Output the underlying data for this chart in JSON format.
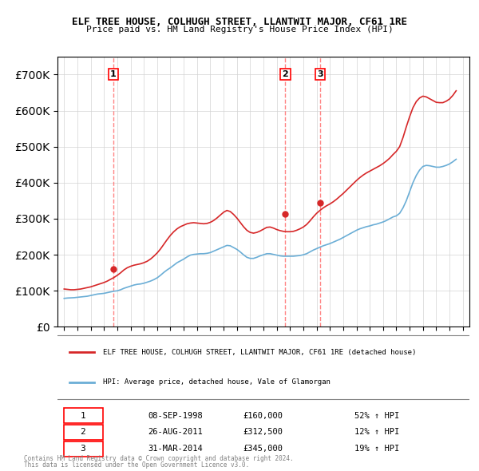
{
  "title": "ELF TREE HOUSE, COLHUGH STREET, LLANTWIT MAJOR, CF61 1RE",
  "subtitle": "Price paid vs. HM Land Registry's House Price Index (HPI)",
  "legend_line1": "ELF TREE HOUSE, COLHUGH STREET, LLANTWIT MAJOR, CF61 1RE (detached house)",
  "legend_line2": "HPI: Average price, detached house, Vale of Glamorgan",
  "footer1": "Contains HM Land Registry data © Crown copyright and database right 2024.",
  "footer2": "This data is licensed under the Open Government Licence v3.0.",
  "transactions": [
    {
      "num": 1,
      "date": "08-SEP-1998",
      "price": 160000,
      "pct": "52%",
      "x": 1998.69
    },
    {
      "num": 2,
      "date": "26-AUG-2011",
      "price": 312500,
      "pct": "12%",
      "x": 2011.65
    },
    {
      "num": 3,
      "date": "31-MAR-2014",
      "price": 345000,
      "pct": "19%",
      "x": 2014.25
    }
  ],
  "hpi_color": "#6baed6",
  "price_color": "#d62728",
  "vline_color": "#ff6666",
  "ylim": [
    0,
    750000
  ],
  "yticks": [
    0,
    100000,
    200000,
    300000,
    400000,
    500000,
    600000,
    700000
  ],
  "xlim_start": 1994.5,
  "xlim_end": 2025.5,
  "hpi_data": {
    "x": [
      1995,
      1995.25,
      1995.5,
      1995.75,
      1996,
      1996.25,
      1996.5,
      1996.75,
      1997,
      1997.25,
      1997.5,
      1997.75,
      1998,
      1998.25,
      1998.5,
      1998.75,
      1999,
      1999.25,
      1999.5,
      1999.75,
      2000,
      2000.25,
      2000.5,
      2000.75,
      2001,
      2001.25,
      2001.5,
      2001.75,
      2002,
      2002.25,
      2002.5,
      2002.75,
      2003,
      2003.25,
      2003.5,
      2003.75,
      2004,
      2004.25,
      2004.5,
      2004.75,
      2005,
      2005.25,
      2005.5,
      2005.75,
      2006,
      2006.25,
      2006.5,
      2006.75,
      2007,
      2007.25,
      2007.5,
      2007.75,
      2008,
      2008.25,
      2008.5,
      2008.75,
      2009,
      2009.25,
      2009.5,
      2009.75,
      2010,
      2010.25,
      2010.5,
      2010.75,
      2011,
      2011.25,
      2011.5,
      2011.75,
      2012,
      2012.25,
      2012.5,
      2012.75,
      2013,
      2013.25,
      2013.5,
      2013.75,
      2014,
      2014.25,
      2014.5,
      2014.75,
      2015,
      2015.25,
      2015.5,
      2015.75,
      2016,
      2016.25,
      2016.5,
      2016.75,
      2017,
      2017.25,
      2017.5,
      2017.75,
      2018,
      2018.25,
      2018.5,
      2018.75,
      2019,
      2019.25,
      2019.5,
      2019.75,
      2020,
      2020.25,
      2020.5,
      2020.75,
      2021,
      2021.25,
      2021.5,
      2021.75,
      2022,
      2022.25,
      2022.5,
      2022.75,
      2023,
      2023.25,
      2023.5,
      2023.75,
      2024,
      2024.25,
      2024.5
    ],
    "y": [
      79000,
      80000,
      80500,
      81000,
      82000,
      83000,
      84000,
      85000,
      87000,
      89000,
      91000,
      92000,
      93000,
      95000,
      97000,
      99000,
      100000,
      103000,
      107000,
      110000,
      113000,
      116000,
      118000,
      119000,
      121000,
      124000,
      127000,
      131000,
      136000,
      143000,
      151000,
      158000,
      164000,
      171000,
      178000,
      183000,
      188000,
      194000,
      199000,
      201000,
      202000,
      203000,
      203000,
      204000,
      206000,
      210000,
      214000,
      218000,
      222000,
      226000,
      225000,
      220000,
      215000,
      208000,
      200000,
      193000,
      190000,
      190000,
      193000,
      197000,
      200000,
      203000,
      203000,
      201000,
      199000,
      197000,
      196000,
      196000,
      196000,
      196000,
      197000,
      198000,
      200000,
      203000,
      208000,
      213000,
      217000,
      221000,
      225000,
      228000,
      231000,
      235000,
      239000,
      243000,
      248000,
      253000,
      258000,
      263000,
      268000,
      272000,
      275000,
      278000,
      280000,
      283000,
      285000,
      288000,
      291000,
      295000,
      300000,
      305000,
      308000,
      315000,
      330000,
      350000,
      375000,
      400000,
      420000,
      435000,
      445000,
      448000,
      447000,
      445000,
      443000,
      443000,
      445000,
      448000,
      452000,
      458000,
      465000
    ]
  },
  "price_data": {
    "x": [
      1995,
      1995.25,
      1995.5,
      1995.75,
      1996,
      1996.25,
      1996.5,
      1996.75,
      1997,
      1997.25,
      1997.5,
      1997.75,
      1998,
      1998.25,
      1998.5,
      1998.75,
      1999,
      1999.25,
      1999.5,
      1999.75,
      2000,
      2000.25,
      2000.5,
      2000.75,
      2001,
      2001.25,
      2001.5,
      2001.75,
      2002,
      2002.25,
      2002.5,
      2002.75,
      2003,
      2003.25,
      2003.5,
      2003.75,
      2004,
      2004.25,
      2004.5,
      2004.75,
      2005,
      2005.25,
      2005.5,
      2005.75,
      2006,
      2006.25,
      2006.5,
      2006.75,
      2007,
      2007.25,
      2007.5,
      2007.75,
      2008,
      2008.25,
      2008.5,
      2008.75,
      2009,
      2009.25,
      2009.5,
      2009.75,
      2010,
      2010.25,
      2010.5,
      2010.75,
      2011,
      2011.25,
      2011.5,
      2011.75,
      2012,
      2012.25,
      2012.5,
      2012.75,
      2013,
      2013.25,
      2013.5,
      2013.75,
      2014,
      2014.25,
      2014.5,
      2014.75,
      2015,
      2015.25,
      2015.5,
      2015.75,
      2016,
      2016.25,
      2016.5,
      2016.75,
      2017,
      2017.25,
      2017.5,
      2017.75,
      2018,
      2018.25,
      2018.5,
      2018.75,
      2019,
      2019.25,
      2019.5,
      2019.75,
      2020,
      2020.25,
      2020.5,
      2020.75,
      2021,
      2021.25,
      2021.5,
      2021.75,
      2022,
      2022.25,
      2022.5,
      2022.75,
      2023,
      2023.25,
      2023.5,
      2023.75,
      2024,
      2024.25,
      2024.5
    ],
    "y": [
      105000,
      104000,
      103000,
      103000,
      104000,
      105000,
      107000,
      109000,
      111000,
      114000,
      117000,
      120000,
      123000,
      127000,
      132000,
      137000,
      143000,
      150000,
      158000,
      164000,
      168000,
      171000,
      173000,
      175000,
      178000,
      182000,
      188000,
      196000,
      205000,
      216000,
      229000,
      242000,
      254000,
      264000,
      272000,
      278000,
      282000,
      286000,
      288000,
      289000,
      288000,
      287000,
      286000,
      287000,
      290000,
      295000,
      302000,
      310000,
      318000,
      323000,
      320000,
      312000,
      302000,
      290000,
      278000,
      268000,
      262000,
      260000,
      262000,
      266000,
      271000,
      276000,
      277000,
      274000,
      270000,
      267000,
      265000,
      264000,
      264000,
      265000,
      268000,
      272000,
      277000,
      284000,
      294000,
      305000,
      315000,
      323000,
      330000,
      336000,
      341000,
      347000,
      354000,
      362000,
      370000,
      379000,
      388000,
      397000,
      406000,
      414000,
      421000,
      427000,
      432000,
      437000,
      442000,
      447000,
      453000,
      460000,
      468000,
      478000,
      487000,
      500000,
      525000,
      555000,
      583000,
      608000,
      625000,
      635000,
      640000,
      638000,
      633000,
      628000,
      623000,
      622000,
      622000,
      626000,
      632000,
      642000,
      655000
    ]
  }
}
